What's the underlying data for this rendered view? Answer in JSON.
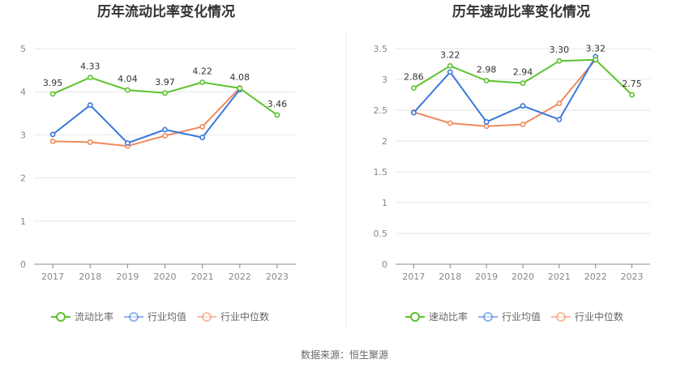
{
  "chart_data": [
    {
      "type": "line",
      "title": "历年流动比率变化情况",
      "categories": [
        "2017",
        "2018",
        "2019",
        "2020",
        "2021",
        "2022",
        "2023"
      ],
      "ylim": [
        0,
        5
      ],
      "yticks": [
        0,
        1,
        2,
        3,
        4,
        5
      ],
      "grid": true,
      "legend_position": "bottom-center",
      "series": [
        {
          "name": "流动比率",
          "color": "#5cc32c",
          "show_labels": true,
          "values": [
            3.95,
            4.33,
            4.04,
            3.97,
            4.22,
            4.08,
            3.46
          ],
          "labels": [
            "3.95",
            "4.33",
            "4.04",
            "3.97",
            "4.22",
            "4.08",
            "3.46"
          ]
        },
        {
          "name": "行业均值",
          "color": "#3b78dc",
          "show_labels": false,
          "values": [
            3.01,
            3.69,
            2.81,
            3.12,
            2.94,
            4.05,
            null
          ]
        },
        {
          "name": "行业中位数",
          "color": "#f08a5d",
          "show_labels": false,
          "values": [
            2.85,
            2.83,
            2.74,
            2.98,
            3.19,
            4.09,
            null
          ]
        }
      ]
    },
    {
      "type": "line",
      "title": "历年速动比率变化情况",
      "categories": [
        "2017",
        "2018",
        "2019",
        "2020",
        "2021",
        "2022",
        "2023"
      ],
      "ylim": [
        0,
        3.5
      ],
      "yticks": [
        0,
        0.5,
        1,
        1.5,
        2,
        2.5,
        3,
        3.5
      ],
      "grid": true,
      "legend_position": "bottom-center",
      "series": [
        {
          "name": "速动比率",
          "color": "#5cc32c",
          "show_labels": true,
          "values": [
            2.86,
            3.22,
            2.98,
            2.94,
            3.3,
            3.32,
            2.75
          ],
          "labels": [
            "2.86",
            "3.22",
            "2.98",
            "2.94",
            "3.30",
            "3.32",
            "2.75"
          ]
        },
        {
          "name": "行业均值",
          "color": "#3b78dc",
          "show_labels": false,
          "values": [
            2.46,
            3.12,
            2.31,
            2.57,
            2.35,
            3.37,
            null
          ]
        },
        {
          "name": "行业中位数",
          "color": "#f08a5d",
          "show_labels": false,
          "values": [
            2.47,
            2.29,
            2.24,
            2.27,
            2.61,
            3.32,
            null
          ]
        }
      ]
    }
  ],
  "footer": {
    "source": "数据来源：恒生聚源"
  },
  "colors": {
    "grid": "#e6e6e6",
    "axis": "#888888",
    "divider": "#eeeeee"
  }
}
